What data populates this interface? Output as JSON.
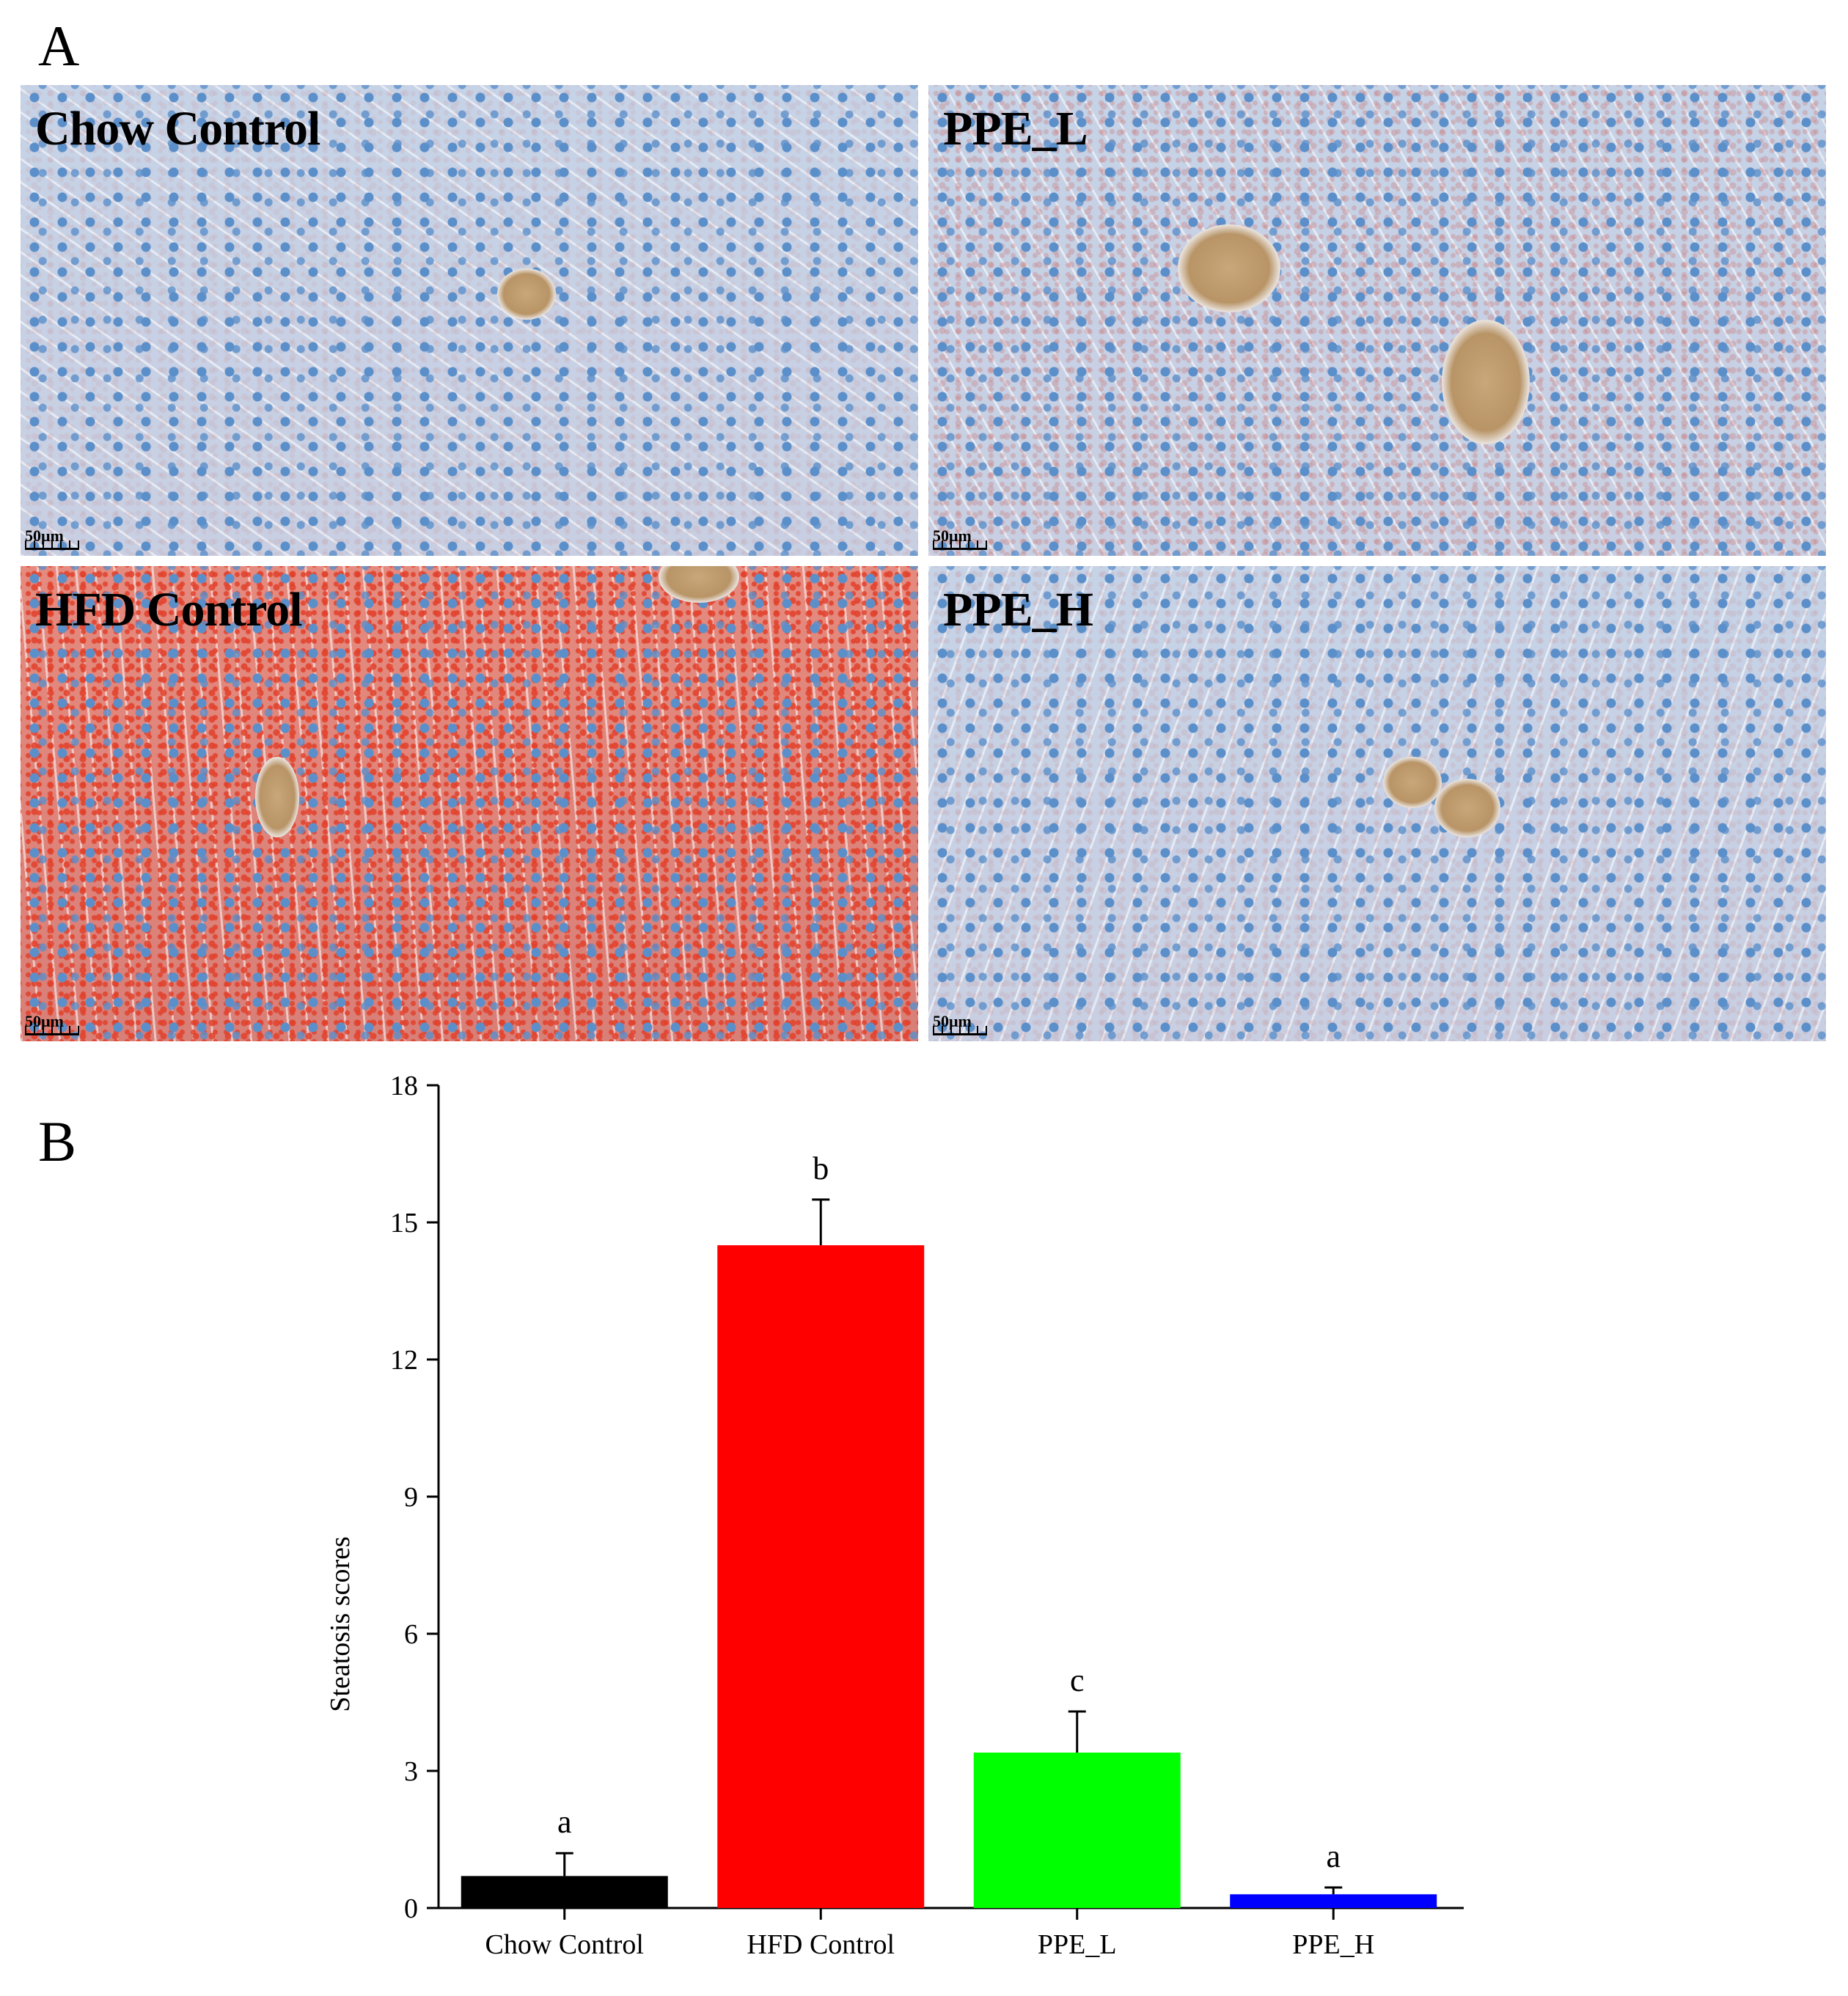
{
  "panel_a": {
    "letter": "A",
    "images": [
      {
        "label": "Chow Control",
        "scale": "50μm",
        "stain": "#5b8fca",
        "lipid": "#c97a7a",
        "lipid_level": 0.12
      },
      {
        "label": "PPE_L",
        "scale": "50μm",
        "stain": "#5b8fca",
        "lipid": "#c97a7a",
        "lipid_level": 0.35
      },
      {
        "label": "HFD Control",
        "scale": "50μm",
        "stain": "#5b8fca",
        "lipid": "#e2402a",
        "lipid_level": 0.85
      },
      {
        "label": "PPE_H",
        "scale": "50μm",
        "stain": "#5b8fca",
        "lipid": "#c97a7a",
        "lipid_level": 0.15
      }
    ]
  },
  "panel_b": {
    "letter": "B"
  },
  "chart_data": {
    "type": "bar",
    "categories": [
      "Chow Control",
      "HFD Control",
      "PPE_L",
      "PPE_H"
    ],
    "values": [
      0.7,
      14.5,
      3.4,
      0.3
    ],
    "errors": [
      0.5,
      1.0,
      0.9,
      0.15
    ],
    "significance": [
      "a",
      "b",
      "c",
      "a"
    ],
    "colors": [
      "#000000",
      "#ff0000",
      "#00ff00",
      "#0000ff"
    ],
    "xlabel": "",
    "ylabel": "Steatosis scores",
    "ylim": [
      0,
      18
    ],
    "yticks": [
      0,
      3,
      6,
      9,
      12,
      15,
      18
    ],
    "grid": false
  }
}
